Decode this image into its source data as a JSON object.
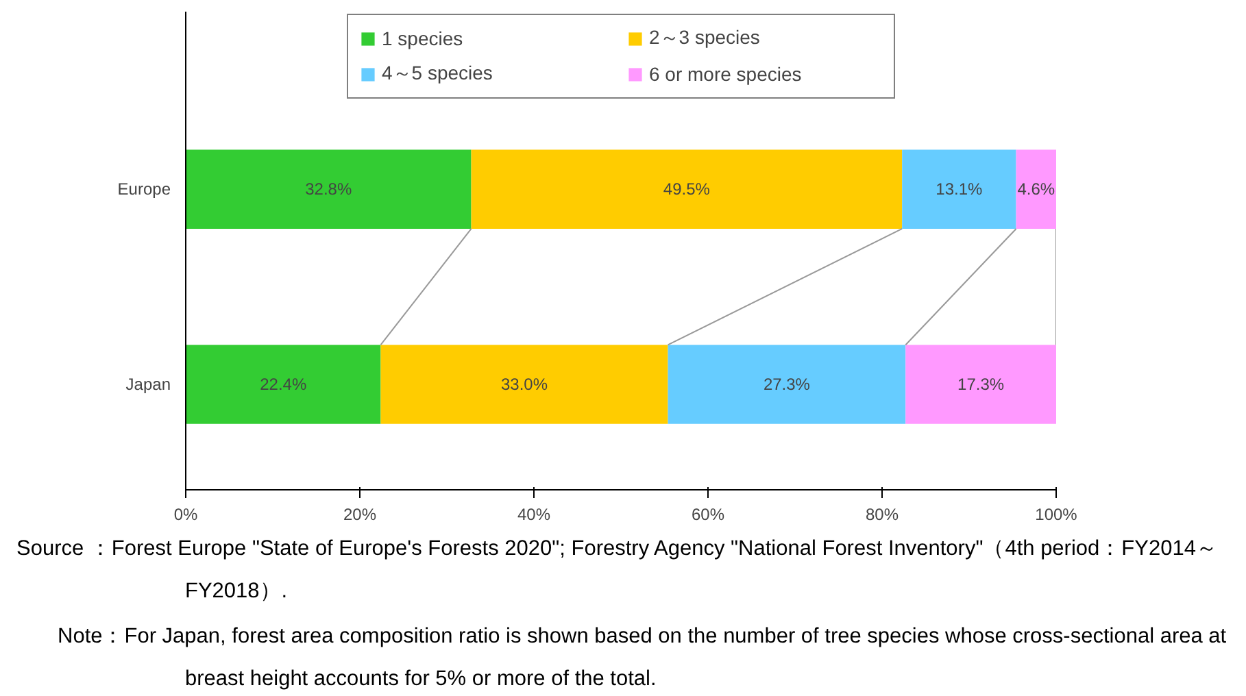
{
  "chart_data": {
    "type": "bar",
    "orientation": "horizontal",
    "stacked": true,
    "categories": [
      "Europe",
      "Japan"
    ],
    "series": [
      {
        "name": "1 species",
        "color": "#33cc33",
        "values": [
          32.8,
          22.4
        ],
        "value_labels": [
          "32.8%",
          "22.4%"
        ]
      },
      {
        "name": "2～3 species",
        "color": "#ffcc00",
        "values": [
          49.5,
          33.0
        ],
        "value_labels": [
          "49.5%",
          "33.0%"
        ]
      },
      {
        "name": "4～5 species",
        "color": "#66ccff",
        "values": [
          13.1,
          27.3
        ],
        "value_labels": [
          "13.1%",
          "27.3%"
        ]
      },
      {
        "name": "6 or more species",
        "color": "#ff99ff",
        "values": [
          4.6,
          17.3
        ],
        "value_labels": [
          "4.6%",
          "17.3%"
        ]
      }
    ],
    "xlim": [
      0,
      100
    ],
    "xticks": [
      {
        "value": 0,
        "label": "0%"
      },
      {
        "value": 20,
        "label": "20%"
      },
      {
        "value": 40,
        "label": "40%"
      },
      {
        "value": 60,
        "label": "60%"
      },
      {
        "value": 80,
        "label": "80%"
      },
      {
        "value": 100,
        "label": "100%"
      }
    ],
    "legend": "top",
    "grid": false,
    "annotations": [
      "Source ：Forest Europe \"State of Europe's Forests 2020\"; Forestry Agency \"National Forest Inventory\"（4th period：FY2014～FY2018）.",
      "Note：For Japan, forest area composition ratio is shown based on the number of tree species whose cross-sectional area at breast height accounts for 5% or more of the total."
    ]
  }
}
